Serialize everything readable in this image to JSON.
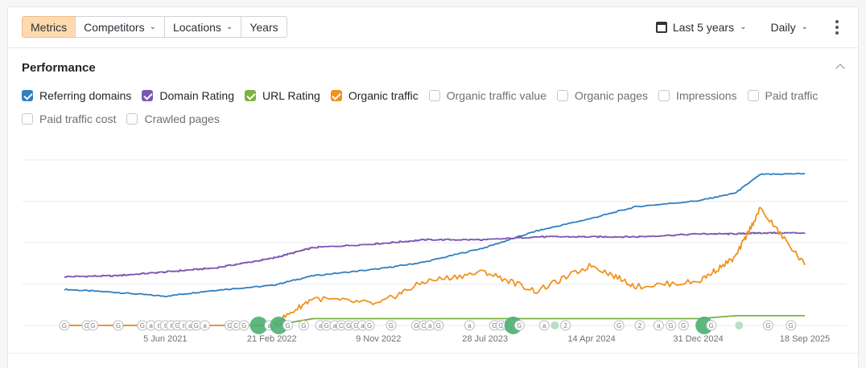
{
  "toolbar": {
    "tabs": [
      {
        "label": "Metrics",
        "active": true,
        "dropdown": false
      },
      {
        "label": "Competitors",
        "active": false,
        "dropdown": true
      },
      {
        "label": "Locations",
        "active": false,
        "dropdown": true
      },
      {
        "label": "Years",
        "active": false,
        "dropdown": false
      }
    ],
    "date_range": "Last 5 years",
    "granularity": "Daily"
  },
  "section": {
    "title": "Performance"
  },
  "legend": [
    {
      "label": "Referring domains",
      "checked": true,
      "color": "#2f7fc1"
    },
    {
      "label": "Domain Rating",
      "checked": true,
      "color": "#7b57b4"
    },
    {
      "label": "URL Rating",
      "checked": true,
      "color": "#7cb342"
    },
    {
      "label": "Organic traffic",
      "checked": true,
      "color": "#f0921e"
    },
    {
      "label": "Organic traffic value",
      "checked": false,
      "color": "#ffffff"
    },
    {
      "label": "Organic pages",
      "checked": false,
      "color": "#ffffff"
    },
    {
      "label": "Impressions",
      "checked": false,
      "color": "#ffffff"
    },
    {
      "label": "Paid traffic",
      "checked": false,
      "color": "#ffffff"
    },
    {
      "label": "Paid traffic cost",
      "checked": false,
      "color": "#ffffff"
    },
    {
      "label": "Crawled pages",
      "checked": false,
      "color": "#ffffff"
    }
  ],
  "chart_data": {
    "type": "line",
    "x_tick_labels": [
      "5 Jun 2021",
      "21 Feb 2022",
      "9 Nov 2022",
      "28 Jul 2023",
      "14 Apr 2024",
      "31 Dec 2024",
      "18 Sep 2025"
    ],
    "x": [
      "2020-10-01",
      "2021-02-01",
      "2021-06-05",
      "2021-10-01",
      "2022-02-21",
      "2022-06-01",
      "2022-11-09",
      "2023-03-01",
      "2023-07-28",
      "2023-12-01",
      "2024-04-14",
      "2024-08-01",
      "2024-12-31",
      "2025-04-01",
      "2025-06-01",
      "2025-09-18"
    ],
    "series": [
      {
        "name": "Referring domains",
        "color": "#2f7fc1",
        "values": [
          37,
          34,
          30,
          36,
          41,
          51,
          58,
          65,
          80,
          97,
          110,
          122,
          128,
          136,
          155,
          156
        ]
      },
      {
        "name": "Domain Rating",
        "color": "#7b57b4",
        "values": [
          50,
          51,
          55,
          59,
          69,
          80,
          84,
          88,
          88,
          91,
          91,
          91,
          94,
          94,
          95,
          95
        ]
      },
      {
        "name": "URL Rating",
        "color": "#7cb342",
        "values": [
          0,
          0,
          0,
          0,
          0,
          7,
          7,
          7,
          7,
          7,
          7,
          7,
          7,
          10,
          10,
          10
        ]
      },
      {
        "name": "Organic traffic",
        "color": "#f0921e",
        "values": [
          0,
          0,
          0,
          0,
          0,
          28,
          22,
          45,
          55,
          35,
          62,
          40,
          45,
          70,
          120,
          62
        ]
      }
    ],
    "gridlines": true,
    "legend_position": "top",
    "ylim": [
      0,
      170
    ]
  },
  "annotations": [
    {
      "date": "2020-10-01",
      "label": "G"
    },
    {
      "date": "2020-11-25",
      "label": "G"
    },
    {
      "date": "2020-12-10",
      "label": "G"
    },
    {
      "date": "2021-02-10",
      "label": "G"
    },
    {
      "date": "2021-04-10",
      "label": "G"
    },
    {
      "date": "2021-05-01",
      "label": "a"
    },
    {
      "date": "2021-05-20",
      "label": "ℓ"
    },
    {
      "date": "2021-06-05",
      "label": "ℓ"
    },
    {
      "date": "2021-06-20",
      "label": "ℓ"
    },
    {
      "date": "2021-07-05",
      "label": "G"
    },
    {
      "date": "2021-07-20",
      "label": "ℓ"
    },
    {
      "date": "2021-08-05",
      "label": "a"
    },
    {
      "date": "2021-08-20",
      "label": "G"
    },
    {
      "date": "2021-09-10",
      "label": "a"
    },
    {
      "date": "2021-11-10",
      "label": "G"
    },
    {
      "date": "2021-11-25",
      "label": "C"
    },
    {
      "date": "2021-12-15",
      "label": "G"
    },
    {
      "date": "2022-01-20",
      "label": "",
      "big": true
    },
    {
      "date": "2022-02-15",
      "label": "a"
    },
    {
      "date": "2022-03-10",
      "label": "",
      "big": true,
      "dot": true
    },
    {
      "date": "2022-04-01",
      "label": "G"
    },
    {
      "date": "2022-05-10",
      "label": "G"
    },
    {
      "date": "2022-06-20",
      "label": "a"
    },
    {
      "date": "2022-07-05",
      "label": "G"
    },
    {
      "date": "2022-07-25",
      "label": "a"
    },
    {
      "date": "2022-08-10",
      "label": "C"
    },
    {
      "date": "2022-08-28",
      "label": "G"
    },
    {
      "date": "2022-09-15",
      "label": "G"
    },
    {
      "date": "2022-10-01",
      "label": "a"
    },
    {
      "date": "2022-10-18",
      "label": "G"
    },
    {
      "date": "2022-12-10",
      "label": "G"
    },
    {
      "date": "2023-02-10",
      "label": "G"
    },
    {
      "date": "2023-02-28",
      "label": "C"
    },
    {
      "date": "2023-03-15",
      "label": "a"
    },
    {
      "date": "2023-04-05",
      "label": "G"
    },
    {
      "date": "2023-06-20",
      "label": "a"
    },
    {
      "date": "2023-08-20",
      "label": "G"
    },
    {
      "date": "2023-09-05",
      "label": "G"
    },
    {
      "date": "2023-09-20",
      "label": "G"
    },
    {
      "date": "2023-10-05",
      "label": "",
      "big": true
    },
    {
      "date": "2023-10-20",
      "label": "G"
    },
    {
      "date": "2023-12-20",
      "label": "a"
    },
    {
      "date": "2024-01-15",
      "label": "",
      "dot": true
    },
    {
      "date": "2024-02-10",
      "label": "2"
    },
    {
      "date": "2024-06-20",
      "label": "G"
    },
    {
      "date": "2024-08-10",
      "label": "2"
    },
    {
      "date": "2024-09-25",
      "label": "a"
    },
    {
      "date": "2024-10-25",
      "label": "G"
    },
    {
      "date": "2024-11-25",
      "label": "G"
    },
    {
      "date": "2025-01-15",
      "label": "",
      "big": true
    },
    {
      "date": "2025-02-01",
      "label": "G"
    },
    {
      "date": "2025-04-10",
      "label": "",
      "dot": true
    },
    {
      "date": "2025-06-20",
      "label": "G"
    },
    {
      "date": "2025-08-15",
      "label": "G"
    }
  ]
}
